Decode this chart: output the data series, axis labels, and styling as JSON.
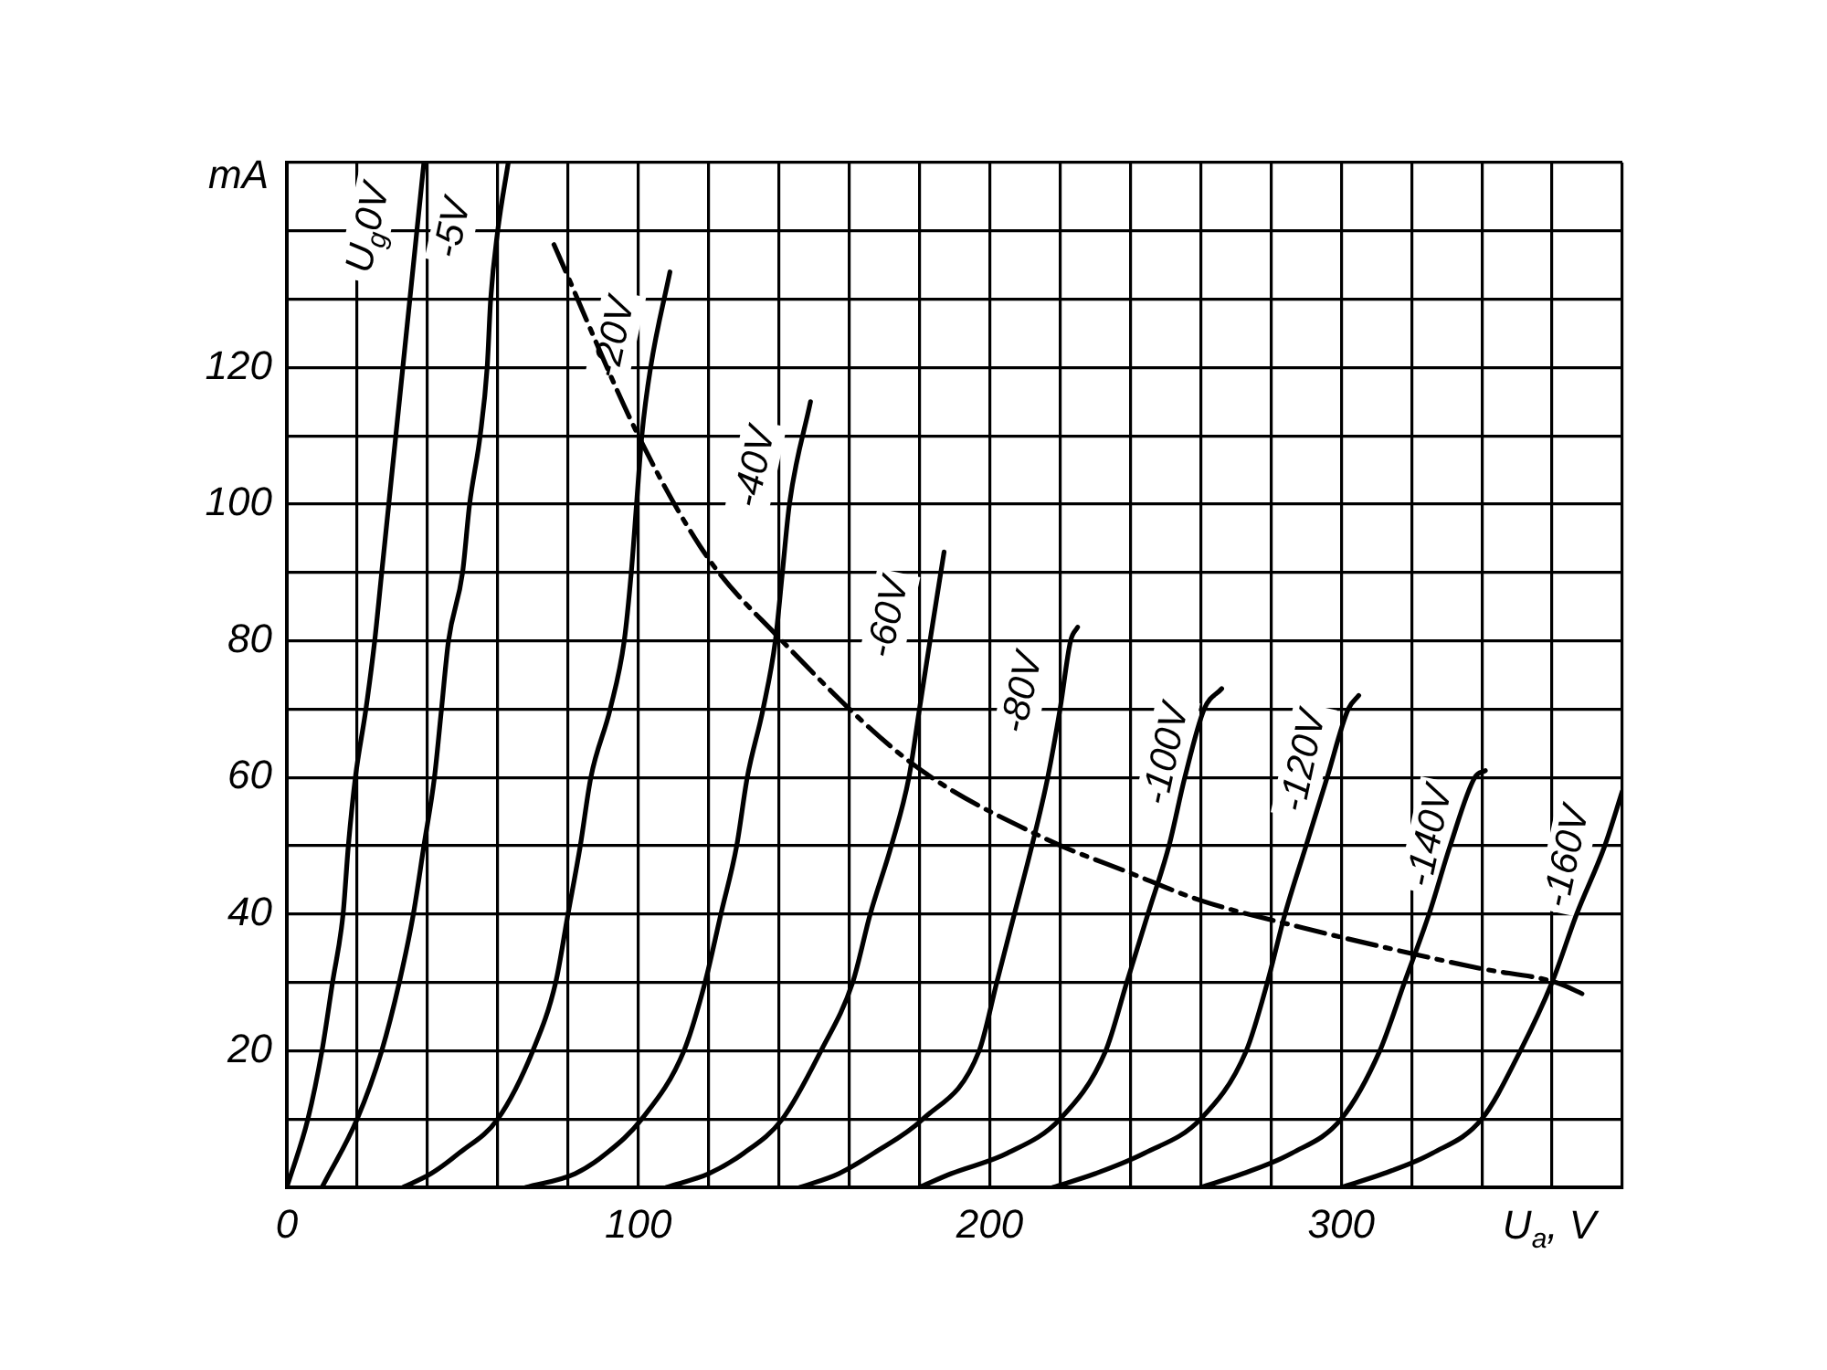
{
  "chart_data": {
    "type": "line",
    "xlabel": "U$_{a}$, V",
    "ylabel": "mA",
    "xlim": [
      0,
      380
    ],
    "ylim": [
      0,
      150
    ],
    "xticks": [
      0,
      {
        "value": 20,
        "label": null
      },
      {
        "value": 40,
        "label": null
      },
      {
        "value": 60,
        "label": null
      },
      {
        "value": 80,
        "label": null
      },
      100,
      {
        "value": 120,
        "label": null
      },
      {
        "value": 140,
        "label": null
      },
      {
        "value": 160,
        "label": null
      },
      {
        "value": 180,
        "label": null
      },
      200,
      {
        "value": 220,
        "label": null
      },
      {
        "value": 240,
        "label": null
      },
      {
        "value": 260,
        "label": null
      },
      {
        "value": 280,
        "label": null
      },
      300,
      {
        "value": 320,
        "label": null
      },
      {
        "value": 340,
        "label": null
      },
      {
        "value": 360,
        "label": null
      },
      {
        "value": 380,
        "label": null
      }
    ],
    "yticks": [
      {
        "value": 0,
        "label": null
      },
      {
        "value": 10,
        "label": null
      },
      20,
      {
        "value": 30,
        "label": null
      },
      40,
      {
        "value": 50,
        "label": null
      },
      60,
      {
        "value": 70,
        "label": null
      },
      80,
      {
        "value": 90,
        "label": null
      },
      100,
      {
        "value": 110,
        "label": null
      },
      120,
      {
        "value": 130,
        "label": null
      },
      {
        "value": 140,
        "label": null
      },
      {
        "value": 150,
        "label": null
      }
    ],
    "grid": true,
    "legend": false,
    "marker": "none",
    "line_style": "solid",
    "series": [
      {
        "name": "U$_{g}$0V",
        "color": "#000000",
        "x": [
          0,
          6,
          10,
          13,
          16,
          17.5,
          19.5,
          22.5,
          25,
          27,
          29,
          33,
          37,
          39
        ],
        "values": [
          0,
          10,
          20,
          30,
          40,
          50,
          60,
          70,
          80,
          90,
          100,
          120,
          140,
          150
        ]
      },
      {
        "name": "-5V",
        "color": "#000000",
        "x": [
          10,
          20,
          27,
          32,
          36,
          39,
          42,
          44,
          46,
          50,
          52,
          55,
          57,
          58,
          60,
          63
        ],
        "values": [
          0,
          10,
          20,
          30,
          40,
          50,
          60,
          70,
          80,
          90,
          100,
          110,
          120,
          130,
          140,
          150
        ]
      },
      {
        "name": "-20V",
        "color": "#000000",
        "x": [
          33,
          41,
          49,
          60,
          70,
          76.5,
          80,
          83.5,
          86.5,
          92,
          96,
          98,
          99.5,
          101,
          103.5,
          109
        ],
        "values": [
          0,
          2,
          5,
          10,
          20,
          30,
          40,
          50,
          60,
          70,
          80,
          90,
          100,
          110,
          120,
          134
        ]
      },
      {
        "name": "-40V",
        "color": "#000000",
        "x": [
          68,
          82,
          91,
          101,
          113,
          119,
          123.5,
          128,
          131,
          135.5,
          139,
          141,
          143,
          149
        ],
        "values": [
          0,
          2,
          5,
          10,
          20,
          30,
          40,
          50,
          60,
          70,
          80,
          90,
          100,
          115
        ]
      },
      {
        "name": "-60V",
        "color": "#000000",
        "x": [
          108,
          120,
          130,
          141,
          152,
          161,
          166,
          172,
          177,
          180,
          183,
          187
        ],
        "values": [
          0,
          2,
          5,
          10,
          20,
          30,
          40,
          50,
          60,
          70,
          80,
          93
        ]
      },
      {
        "name": "-80V",
        "color": "#000000",
        "x": [
          146,
          157,
          167,
          181,
          197,
          202,
          207,
          212,
          216.5,
          220,
          223,
          225
        ],
        "values": [
          0,
          2,
          5,
          10,
          20,
          30,
          40,
          50,
          60,
          70,
          80,
          82
        ]
      },
      {
        "name": "-100V",
        "color": "#000000",
        "x": [
          180,
          189,
          205,
          220,
          233,
          239,
          245,
          251,
          255.5,
          261,
          266
        ],
        "values": [
          0,
          2,
          5,
          10,
          20,
          30,
          40,
          50,
          60,
          70,
          73
        ]
      },
      {
        "name": "-120V",
        "color": "#000000",
        "x": [
          218,
          230,
          244,
          260,
          273,
          279,
          284,
          290,
          296,
          302,
          305
        ],
        "values": [
          0,
          2,
          5,
          10,
          20,
          30,
          40,
          50,
          60,
          70,
          72
        ]
      },
      {
        "name": "-140V",
        "color": "#000000",
        "x": [
          260,
          272,
          286,
          300,
          311,
          318,
          325,
          331,
          338,
          341
        ],
        "values": [
          0,
          2,
          5,
          10,
          20,
          30,
          40,
          50,
          60,
          61
        ]
      },
      {
        "name": "-160V",
        "color": "#000000",
        "x": [
          300,
          312,
          326,
          340,
          351,
          360,
          367,
          375,
          380
        ],
        "values": [
          0,
          2,
          5,
          10,
          20,
          30,
          40,
          50,
          58
        ]
      },
      {
        "color": "#000000",
        "line_style": "dashed",
        "x": [
          76,
          101,
          120,
          139,
          178,
          216,
          240,
          260,
          289,
          322,
          340,
          361,
          370
        ],
        "values": [
          138,
          109,
          92,
          81,
          62,
          51,
          46,
          42,
          38,
          34,
          32,
          30,
          28
        ]
      }
    ]
  }
}
